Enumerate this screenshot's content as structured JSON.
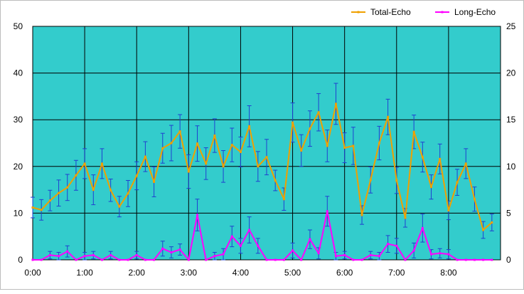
{
  "chart_data": {
    "type": "line",
    "legend": {
      "position": "top-right",
      "entries": [
        "Total-Echo",
        "Long-Echo"
      ]
    },
    "x_tick_labels": [
      "0:00",
      "1:00",
      "2:00",
      "3:00",
      "4:00",
      "5:00",
      "6:00",
      "7:00",
      "8:00"
    ],
    "y_left": {
      "ticks": [
        "0",
        "10",
        "20",
        "30",
        "40",
        "50"
      ],
      "ylim": [
        0,
        50
      ]
    },
    "y_right": {
      "ticks": [
        "0",
        "5",
        "10",
        "15",
        "20",
        "25"
      ],
      "ylim": [
        0,
        25
      ]
    },
    "xlim_minutes": [
      0,
      540
    ],
    "x_step_minutes": 10,
    "grid": true,
    "plot_background": "#33cccc",
    "series": [
      {
        "name": "Total-Echo",
        "axis": "left",
        "color": "#f0a000",
        "error_color": "#2040d0",
        "values": [
          11.2,
          10.7,
          12.7,
          14.3,
          15.5,
          18.1,
          20.6,
          15.0,
          20.6,
          14.9,
          11.4,
          14.2,
          18.0,
          22.1,
          16.7,
          23.9,
          25.0,
          27.5,
          18.9,
          24.9,
          20.6,
          26.6,
          20.0,
          24.6,
          23.1,
          28.6,
          20.0,
          22.0,
          17.0,
          13.0,
          29.4,
          23.4,
          28.1,
          31.6,
          24.4,
          33.4,
          24.0,
          24.4,
          9.6,
          17.1,
          25.0,
          30.6,
          17.0,
          9.0,
          27.4,
          22.0,
          15.6,
          21.6,
          10.6,
          16.6,
          20.6,
          13.0,
          6.4,
          8.0
        ],
        "errors": [
          2.2,
          2.2,
          2.2,
          2.8,
          2.8,
          3.2,
          3.2,
          3.2,
          3.2,
          2.4,
          2.2,
          2.8,
          3.0,
          3.2,
          3.2,
          3.2,
          3.8,
          3.6,
          3.6,
          3.8,
          3.4,
          3.6,
          3.4,
          3.6,
          3.2,
          4.4,
          3.2,
          3.8,
          2.2,
          2.4,
          4.2,
          3.4,
          3.8,
          4.0,
          3.4,
          4.4,
          3.2,
          4.0,
          2.0,
          2.8,
          3.6,
          3.8,
          2.8,
          2.0,
          3.6,
          3.2,
          2.6,
          3.2,
          2.0,
          2.8,
          3.2,
          2.6,
          1.8,
          1.8
        ]
      },
      {
        "name": "Long-Echo",
        "axis": "right",
        "color": "#ff00ff",
        "error_color": "#2040d0",
        "values": [
          0,
          0,
          0.5,
          0.4,
          0.9,
          0,
          0.4,
          0.5,
          0,
          0.5,
          0,
          0,
          0.5,
          0,
          0,
          1.2,
          0.8,
          1.1,
          0,
          4.8,
          0,
          0.4,
          0.6,
          2.5,
          1.5,
          3.2,
          1.5,
          0,
          0,
          0,
          1.0,
          0,
          2.2,
          0.7,
          5.2,
          0.4,
          0.5,
          0,
          0,
          0.5,
          0.4,
          1.7,
          1.5,
          0,
          1.0,
          3.4,
          0.6,
          0.7,
          0.6,
          0,
          0,
          0,
          0,
          0
        ],
        "errors": [
          0,
          0,
          0.4,
          0.4,
          0.6,
          0,
          0.4,
          0.4,
          0,
          0.4,
          0,
          0,
          0.4,
          0,
          0,
          0.8,
          0.6,
          0.6,
          0,
          1.7,
          0,
          0.4,
          0.6,
          1.1,
          0.8,
          1.4,
          0.8,
          0,
          0,
          0,
          0.8,
          0,
          1.0,
          0.6,
          1.6,
          0.4,
          0.4,
          0,
          0,
          0.4,
          0.4,
          0.9,
          0.8,
          0,
          0.8,
          1.5,
          0.5,
          0.5,
          0.5,
          0,
          0,
          0,
          0,
          0
        ]
      }
    ]
  }
}
